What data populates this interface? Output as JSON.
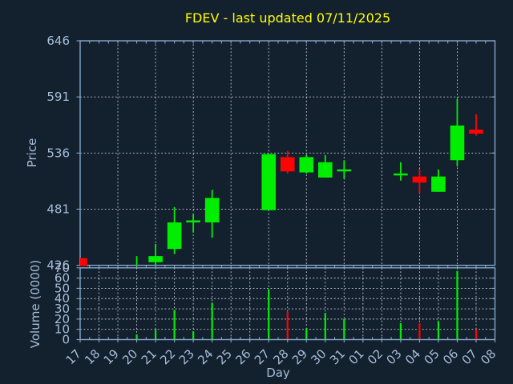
{
  "title": {
    "text": "FDEV - last updated 07/11/2025"
  },
  "colors": {
    "background": "#13202e",
    "axis": "#86a7cc",
    "grid": "#c9ced6",
    "label": "#a6bdd8",
    "title": "#ffff00",
    "up": "#00ef00",
    "down": "#ff0202"
  },
  "chart_data": {
    "type": "candlestick",
    "title": "FDEV - last updated 07/11/2025",
    "xlabel": "Day",
    "ylabel_price": "Price",
    "ylabel_volume": "Volume (0000)",
    "price_ticks": [
      646,
      591,
      536,
      481,
      426
    ],
    "price_ylim": [
      373,
      646
    ],
    "volume_ticks": [
      70,
      60,
      50,
      40,
      30,
      20,
      10,
      0
    ],
    "volume_ylim": [
      0,
      70
    ],
    "grid": true,
    "legend": "none",
    "days": [
      "17",
      "18",
      "19",
      "20",
      "21",
      "22",
      "23",
      "24",
      "25",
      "26",
      "27",
      "28",
      "29",
      "30",
      "31",
      "01",
      "02",
      "03",
      "04",
      "05",
      "06",
      "07",
      "08"
    ],
    "candles": [
      {
        "day": "17",
        "open": 433,
        "high": 433,
        "low": 420,
        "close": 420,
        "volume": null,
        "direction": "down"
      },
      {
        "day": "20",
        "open": 418,
        "high": 435,
        "low": 417,
        "close": 420,
        "volume": 5,
        "direction": "up"
      },
      {
        "day": "21",
        "open": 429,
        "high": 447,
        "low": 409,
        "close": 435,
        "volume": 10,
        "direction": "up"
      },
      {
        "day": "22",
        "open": 442,
        "high": 483,
        "low": 437,
        "close": 468,
        "volume": 29,
        "direction": "up"
      },
      {
        "day": "23",
        "open": 469,
        "high": 476,
        "low": 458,
        "close": 469,
        "volume": 8,
        "direction": "up"
      },
      {
        "day": "24",
        "open": 468,
        "high": 500,
        "low": 453,
        "close": 492,
        "volume": 36,
        "direction": "up"
      },
      {
        "day": "27",
        "open": 480,
        "high": 535,
        "low": 480,
        "close": 535,
        "volume": 49,
        "direction": "up"
      },
      {
        "day": "28",
        "open": 532,
        "high": 538,
        "low": 516,
        "close": 518,
        "volume": 27,
        "direction": "down"
      },
      {
        "day": "29",
        "open": 517,
        "high": 534,
        "low": 516,
        "close": 532,
        "volume": 11,
        "direction": "up"
      },
      {
        "day": "30",
        "open": 512,
        "high": 534,
        "low": 512,
        "close": 527,
        "volume": 26,
        "direction": "up"
      },
      {
        "day": "31",
        "open": 519,
        "high": 529,
        "low": 511,
        "close": 519,
        "volume": 20,
        "direction": "up"
      },
      {
        "day": "03",
        "open": 515,
        "high": 527,
        "low": 509,
        "close": 515,
        "volume": 16,
        "direction": "up"
      },
      {
        "day": "04",
        "open": 513,
        "high": 520,
        "low": 497,
        "close": 507,
        "volume": 16,
        "direction": "down"
      },
      {
        "day": "05",
        "open": 498,
        "high": 520,
        "low": 498,
        "close": 513,
        "volume": 18,
        "direction": "up"
      },
      {
        "day": "06",
        "open": 529,
        "high": 589,
        "low": 523,
        "close": 563,
        "volume": 67,
        "direction": "up"
      },
      {
        "day": "07",
        "open": 559,
        "high": 574,
        "low": 553,
        "close": 555,
        "volume": 10,
        "direction": "down"
      }
    ]
  }
}
